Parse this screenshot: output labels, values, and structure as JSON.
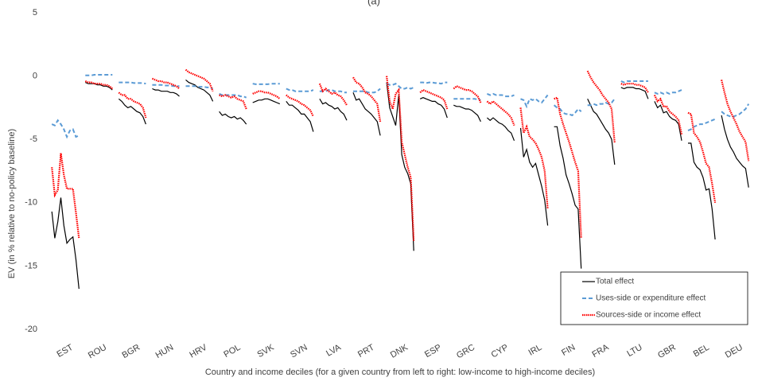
{
  "chart_data": {
    "type": "line",
    "title": "(a)",
    "ylabel": "EV (in % relative to no-policy baseline)",
    "xlabel": "Country and income deciles (for a given country from left to right: low-income to high-income deciles)",
    "categories": [
      "EST",
      "ROU",
      "BGR",
      "HUN",
      "HRV",
      "POL",
      "SVK",
      "SVN",
      "LVA",
      "PRT",
      "DNK",
      "ESP",
      "GRC",
      "CYP",
      "IRL",
      "FIN",
      "FRA",
      "LTU",
      "GBR",
      "BEL",
      "DEU"
    ],
    "ylim": [
      -20,
      5
    ],
    "yticks": [
      -20,
      -15,
      -10,
      -5,
      0,
      5
    ],
    "grid": false,
    "legend": "lower right",
    "series": [
      {
        "name": "Total effect",
        "color": "#000000",
        "dash": "solid",
        "values": [
          [
            -10.7,
            -12.8,
            -11.5,
            -9.6,
            -11.8,
            -13.2,
            -12.9,
            -12.7,
            -14.5,
            -16.8
          ],
          [
            -0.5,
            -0.6,
            -0.6,
            -0.6,
            -0.7,
            -0.7,
            -0.8,
            -0.8,
            -0.9,
            -1.1
          ],
          [
            -1.8,
            -2.0,
            -2.3,
            -2.5,
            -2.4,
            -2.6,
            -2.8,
            -2.9,
            -3.2,
            -3.8
          ],
          [
            -1.0,
            -1.1,
            -1.1,
            -1.2,
            -1.2,
            -1.2,
            -1.3,
            -1.3,
            -1.4,
            -1.6
          ],
          [
            -0.3,
            -0.5,
            -0.6,
            -0.7,
            -0.9,
            -1.0,
            -1.1,
            -1.3,
            -1.5,
            -2.0
          ],
          [
            -2.8,
            -3.1,
            -3.0,
            -3.2,
            -3.3,
            -3.2,
            -3.4,
            -3.3,
            -3.5,
            -3.8
          ],
          [
            -2.1,
            -2.0,
            -1.9,
            -1.9,
            -1.8,
            -1.8,
            -1.9,
            -2.0,
            -2.1,
            -2.2
          ],
          [
            -2.0,
            -2.3,
            -2.3,
            -2.5,
            -2.7,
            -3.0,
            -3.0,
            -3.3,
            -3.6,
            -4.4
          ],
          [
            -1.8,
            -2.2,
            -2.1,
            -2.3,
            -2.4,
            -2.6,
            -2.5,
            -2.8,
            -3.0,
            -3.5
          ],
          [
            -1.3,
            -1.9,
            -1.8,
            -2.2,
            -2.6,
            -2.8,
            -3.0,
            -3.3,
            -3.6,
            -4.7
          ],
          [
            -0.5,
            -2.5,
            -3.2,
            -3.9,
            -1.5,
            -6.2,
            -7.2,
            -7.7,
            -8.5,
            -13.8
          ],
          [
            -1.8,
            -1.7,
            -1.8,
            -1.9,
            -2.0,
            -2.0,
            -2.2,
            -2.3,
            -2.6,
            -3.3
          ],
          [
            -2.3,
            -2.4,
            -2.4,
            -2.5,
            -2.6,
            -2.6,
            -2.7,
            -2.9,
            -3.1,
            -3.6
          ],
          [
            -3.3,
            -3.5,
            -3.3,
            -3.5,
            -3.7,
            -3.8,
            -4.0,
            -4.3,
            -4.5,
            -5.1
          ],
          [
            -4.1,
            -6.4,
            -5.8,
            -6.8,
            -7.2,
            -6.9,
            -7.8,
            -8.7,
            -9.8,
            -11.8
          ],
          [
            -4.0,
            -4.0,
            -5.5,
            -6.5,
            -7.8,
            -8.5,
            -9.3,
            -10.2,
            -10.5,
            -15.2
          ],
          [
            -1.8,
            -2.3,
            -2.8,
            -3.0,
            -3.4,
            -3.8,
            -4.2,
            -4.5,
            -5.0,
            -7.0
          ],
          [
            -0.9,
            -1.0,
            -0.9,
            -0.9,
            -0.9,
            -1.0,
            -1.0,
            -1.1,
            -1.2,
            -1.8
          ],
          [
            -2.0,
            -2.5,
            -2.3,
            -2.9,
            -2.8,
            -3.2,
            -3.4,
            -3.5,
            -3.8,
            -5.1
          ],
          [
            -5.3,
            -5.3,
            -6.8,
            -7.2,
            -7.4,
            -8.0,
            -9.0,
            -8.9,
            -10.5,
            -12.9
          ],
          [
            -3.1,
            -4.2,
            -5.0,
            -5.6,
            -6.0,
            -6.5,
            -6.8,
            -7.1,
            -7.3,
            -8.8
          ]
        ]
      },
      {
        "name": "Uses-side or expenditure effect",
        "color": "#5b9bd5",
        "dash": "dashed",
        "values": [
          [
            -3.8,
            -3.9,
            -3.5,
            -3.8,
            -4.2,
            -4.8,
            -4.3,
            -4.2,
            -4.8,
            -4.7
          ],
          [
            0.05,
            0.05,
            0.05,
            0.1,
            0.1,
            0.1,
            0.1,
            0.1,
            0.1,
            0.1
          ],
          [
            -0.5,
            -0.5,
            -0.5,
            -0.5,
            -0.5,
            -0.55,
            -0.55,
            -0.55,
            -0.55,
            -0.6
          ],
          [
            -0.7,
            -0.7,
            -0.7,
            -0.7,
            -0.75,
            -0.75,
            -0.75,
            -0.8,
            -0.8,
            -0.8
          ],
          [
            -0.8,
            -0.8,
            -0.8,
            -0.8,
            -0.85,
            -0.85,
            -0.85,
            -0.9,
            -0.9,
            -1.0
          ],
          [
            -1.4,
            -1.5,
            -1.5,
            -1.5,
            -1.5,
            -1.5,
            -1.5,
            -1.6,
            -1.6,
            -1.7
          ],
          [
            -0.6,
            -0.65,
            -0.65,
            -0.65,
            -0.65,
            -0.65,
            -0.6,
            -0.6,
            -0.6,
            -0.6
          ],
          [
            -1.0,
            -1.1,
            -1.1,
            -1.2,
            -1.2,
            -1.2,
            -1.2,
            -1.2,
            -1.2,
            -1.1
          ],
          [
            -1.2,
            -1.2,
            -1.2,
            -1.1,
            -1.1,
            -1.2,
            -1.2,
            -1.2,
            -1.3,
            -1.3
          ],
          [
            -1.2,
            -1.2,
            -1.2,
            -1.2,
            -1.2,
            -1.3,
            -1.3,
            -1.3,
            -1.2,
            -1.0
          ],
          [
            -0.6,
            -0.7,
            -0.7,
            -0.6,
            -0.8,
            -1.0,
            -1.0,
            -0.9,
            -1.0,
            -0.9
          ],
          [
            -0.5,
            -0.5,
            -0.55,
            -0.5,
            -0.5,
            -0.55,
            -0.55,
            -0.6,
            -0.5,
            -0.5
          ],
          [
            -1.8,
            -1.8,
            -1.8,
            -1.8,
            -1.8,
            -1.8,
            -1.8,
            -1.8,
            -1.85,
            -1.9
          ],
          [
            -1.4,
            -1.5,
            -1.4,
            -1.5,
            -1.5,
            -1.5,
            -1.6,
            -1.6,
            -1.6,
            -1.5
          ],
          [
            -1.8,
            -1.9,
            -2.4,
            -1.8,
            -1.9,
            -1.8,
            -2.0,
            -2.1,
            -1.8,
            -1.5
          ],
          [
            -2.3,
            -2.5,
            -2.6,
            -2.9,
            -3.0,
            -3.0,
            -3.1,
            -2.9,
            -2.6,
            -2.8
          ],
          [
            -2.3,
            -2.3,
            -2.2,
            -2.3,
            -2.2,
            -2.2,
            -2.1,
            -2.2,
            -2.1,
            -1.8
          ],
          [
            -0.4,
            -0.5,
            -0.4,
            -0.4,
            -0.4,
            -0.4,
            -0.4,
            -0.4,
            -0.4,
            -0.4
          ],
          [
            -1.3,
            -1.4,
            -1.3,
            -1.4,
            -1.3,
            -1.4,
            -1.3,
            -1.3,
            -1.2,
            -1.1
          ],
          [
            -4.3,
            -4.2,
            -4.0,
            -3.9,
            -3.8,
            -3.8,
            -3.7,
            -3.6,
            -3.5,
            -3.4
          ],
          [
            -2.8,
            -3.0,
            -3.1,
            -3.2,
            -3.2,
            -3.1,
            -3.0,
            -2.8,
            -2.6,
            -2.2
          ]
        ]
      },
      {
        "name": "Sources-side or income effect",
        "color": "#ff0000",
        "dash": "dotted",
        "values": [
          [
            -7.2,
            -9.4,
            -9.0,
            -6.1,
            -7.8,
            -8.9,
            -8.9,
            -8.9,
            -10.8,
            -12.8
          ],
          [
            -0.4,
            -0.5,
            -0.5,
            -0.6,
            -0.6,
            -0.6,
            -0.7,
            -0.7,
            -0.8,
            -1.0
          ],
          [
            -1.3,
            -1.5,
            -1.5,
            -1.8,
            -1.8,
            -2.0,
            -2.1,
            -2.2,
            -2.5,
            -3.3
          ],
          [
            -0.2,
            -0.3,
            -0.4,
            -0.4,
            -0.5,
            -0.5,
            -0.6,
            -0.7,
            -0.8,
            -1.0
          ],
          [
            0.5,
            0.3,
            0.2,
            0.1,
            0.0,
            -0.1,
            -0.2,
            -0.4,
            -0.6,
            -1.2
          ],
          [
            -1.5,
            -1.6,
            -1.5,
            -1.6,
            -1.7,
            -1.6,
            -1.8,
            -1.9,
            -2.0,
            -2.6
          ],
          [
            -1.4,
            -1.3,
            -1.2,
            -1.2,
            -1.3,
            -1.3,
            -1.4,
            -1.5,
            -1.6,
            -1.8
          ],
          [
            -1.5,
            -1.7,
            -1.8,
            -1.9,
            -2.0,
            -2.2,
            -2.3,
            -2.5,
            -2.7,
            -3.2
          ],
          [
            -0.6,
            -1.2,
            -1.0,
            -1.2,
            -1.4,
            -1.3,
            -1.5,
            -1.6,
            -1.9,
            -2.3
          ],
          [
            -0.1,
            -0.5,
            -0.6,
            -0.9,
            -1.3,
            -1.4,
            -1.6,
            -1.9,
            -2.2,
            -3.6
          ],
          [
            0.0,
            -2.0,
            -2.6,
            -1.4,
            -1.1,
            -5.2,
            -6.2,
            -7.2,
            -8.0,
            -13.0
          ],
          [
            -1.3,
            -1.1,
            -1.2,
            -1.3,
            -1.4,
            -1.5,
            -1.6,
            -1.7,
            -1.9,
            -2.6
          ],
          [
            -1.0,
            -0.8,
            -0.9,
            -1.0,
            -1.1,
            -1.1,
            -1.2,
            -1.4,
            -1.6,
            -2.1
          ],
          [
            -2.0,
            -2.2,
            -2.0,
            -2.2,
            -2.4,
            -2.6,
            -2.8,
            -3.0,
            -3.3,
            -3.9
          ],
          [
            -2.5,
            -4.5,
            -4.0,
            -4.8,
            -5.0,
            -5.3,
            -5.8,
            -6.4,
            -7.5,
            -10.5
          ],
          [
            -1.8,
            -1.7,
            -3.0,
            -3.8,
            -4.5,
            -5.2,
            -6.0,
            -6.8,
            -7.5,
            -12.8
          ],
          [
            0.4,
            -0.1,
            -0.5,
            -0.8,
            -1.1,
            -1.5,
            -1.8,
            -2.1,
            -2.6,
            -5.3
          ],
          [
            -0.6,
            -0.7,
            -0.6,
            -0.6,
            -0.6,
            -0.7,
            -0.7,
            -0.8,
            -0.9,
            -1.3
          ],
          [
            -1.5,
            -2.0,
            -1.8,
            -2.4,
            -2.4,
            -2.8,
            -3.0,
            -3.2,
            -3.5,
            -4.6
          ],
          [
            -2.9,
            -3.0,
            -4.5,
            -4.8,
            -5.2,
            -6.0,
            -6.9,
            -7.2,
            -8.5,
            -10.0
          ],
          [
            -0.3,
            -1.3,
            -2.2,
            -2.8,
            -3.3,
            -3.8,
            -4.4,
            -4.8,
            -5.2,
            -6.7
          ]
        ]
      }
    ]
  }
}
